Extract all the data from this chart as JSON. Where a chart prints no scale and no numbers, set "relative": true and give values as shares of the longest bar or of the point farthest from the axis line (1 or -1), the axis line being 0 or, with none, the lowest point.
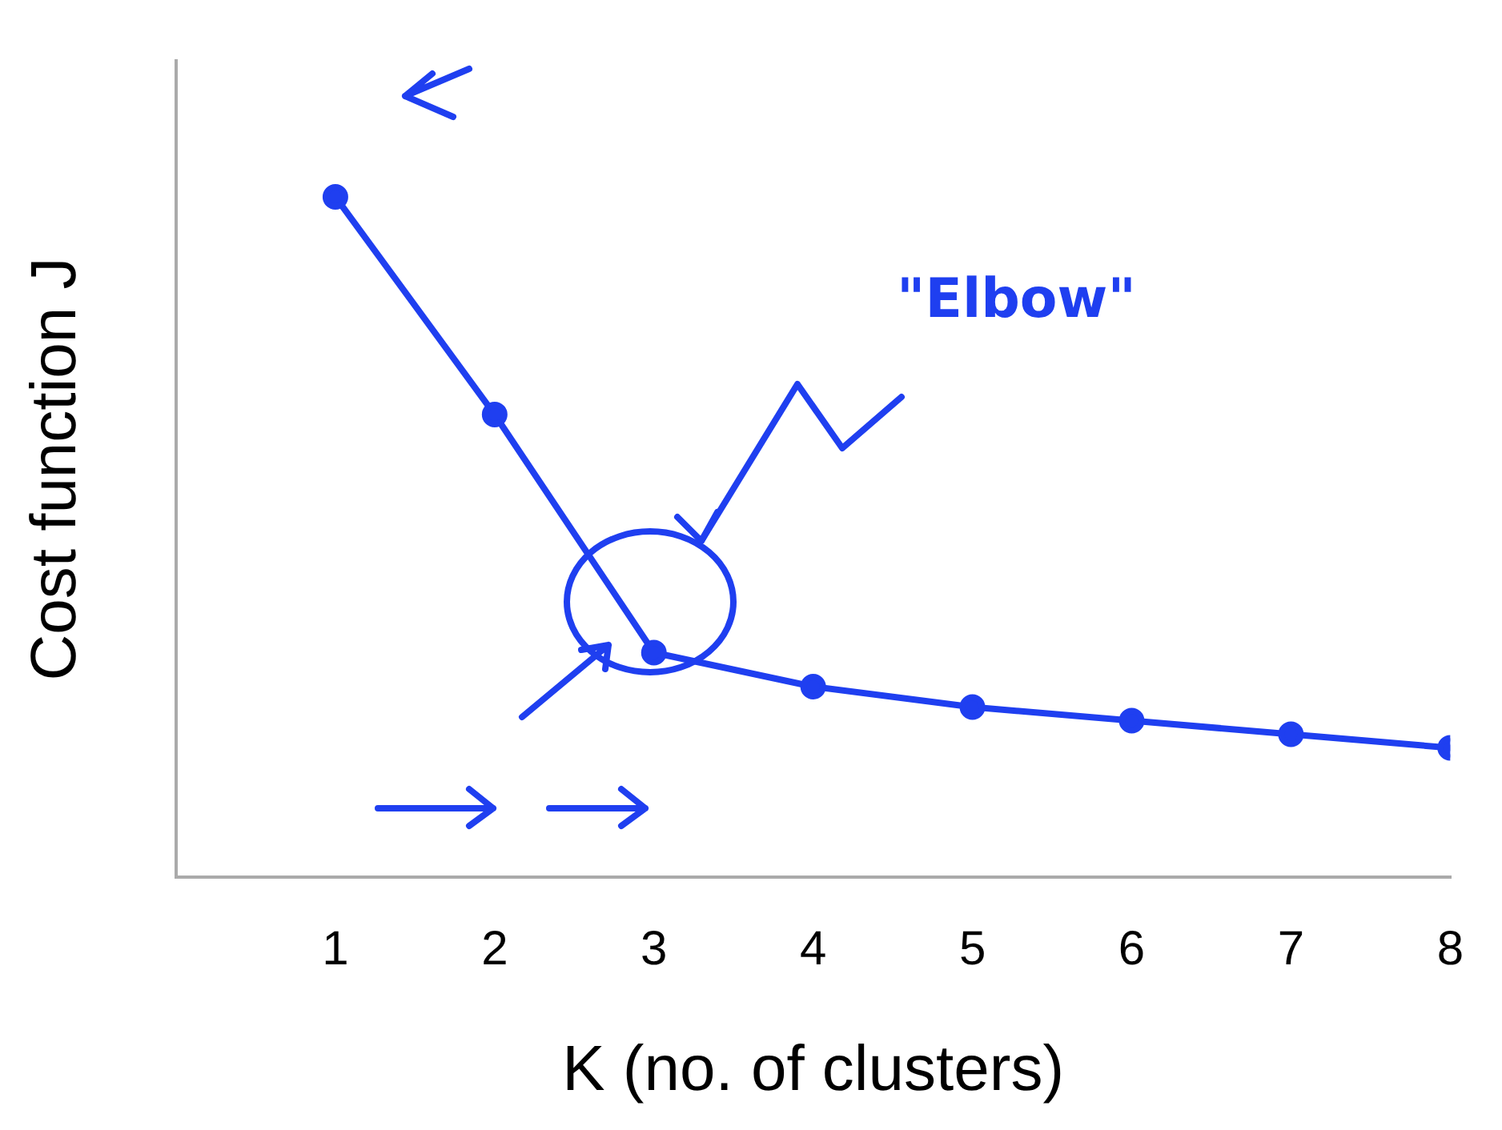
{
  "chart_data": {
    "type": "line",
    "xlabel": "K (no. of clusters)",
    "ylabel": "Cost function J",
    "relative": true,
    "x": [
      1,
      2,
      3,
      4,
      5,
      6,
      7,
      8
    ],
    "xlim": [
      0,
      8
    ],
    "xticks": [
      1,
      2,
      3,
      4,
      5,
      6,
      7,
      8
    ],
    "series": [
      {
        "color": "#1f3ff0",
        "values": [
          1,
          0.68,
          0.33,
          0.28,
          0.25,
          0.23,
          0.21,
          0.19
        ]
      }
    ],
    "marker": "circle",
    "grid": false,
    "legend": false,
    "annotations": [
      "\"Elbow\""
    ]
  }
}
